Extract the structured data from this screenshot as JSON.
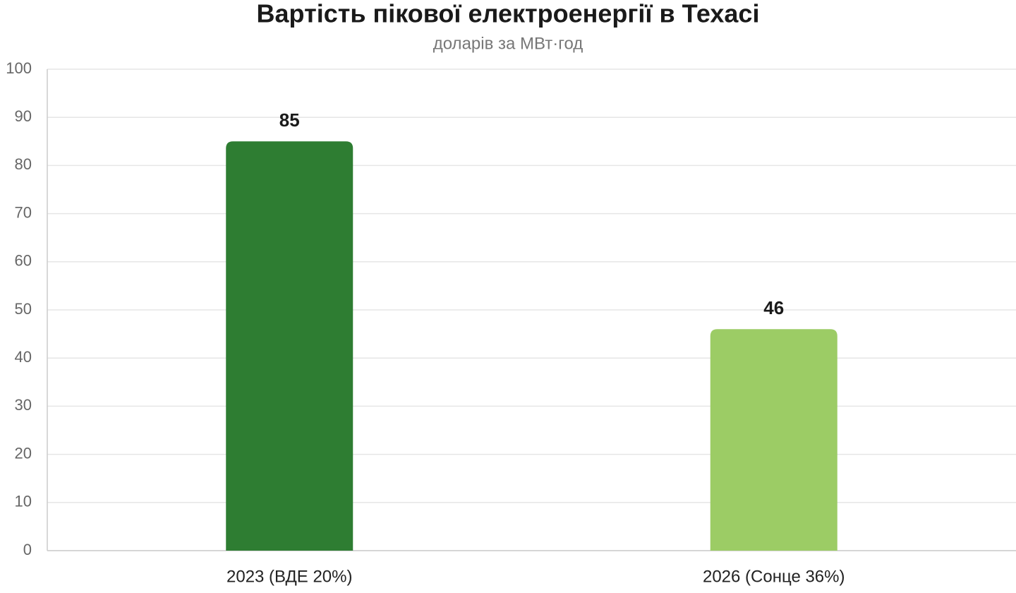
{
  "chart_data": {
    "type": "bar",
    "title": "Вартість пікової електроенергії в Техасі",
    "subtitle": "доларів за МВт·год",
    "categories": [
      "2023 (ВДЕ 20%)",
      "2026 (Сонце 36%)"
    ],
    "values": [
      85,
      46
    ],
    "colors": [
      "#2e7d32",
      "#9ccc65"
    ],
    "ylim": [
      0,
      100
    ],
    "yticks": [
      0,
      10,
      20,
      30,
      40,
      50,
      60,
      70,
      80,
      90,
      100
    ],
    "grid": true
  }
}
